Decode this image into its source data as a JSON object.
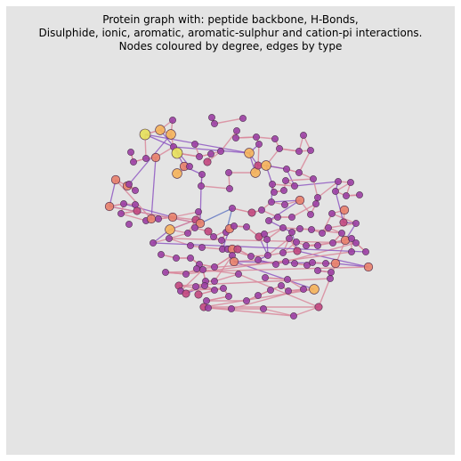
{
  "title_lines": [
    "Protein graph with: peptide backbone, H-Bonds,",
    "Disulphide, ionic, aromatic, aromatic-sulphur and cation-pi interactions.",
    "Nodes coloured by degree, edges by type"
  ],
  "colors": {
    "background": "#e4e4e4",
    "node_low_degree": "#9b3fa4",
    "node_mid_low_degree": "#c2477e",
    "node_mid_degree": "#e7806a",
    "node_high_degree": "#f4b25a",
    "node_top_degree": "#e6e05a",
    "edge_backbone": "#d98a9c",
    "edge_interaction": "#8a4fbf",
    "edge_other": "#5a6fc0"
  }
}
